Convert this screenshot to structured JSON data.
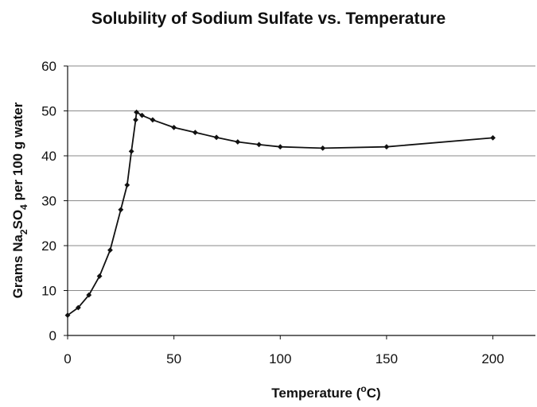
{
  "chart_data": {
    "type": "line",
    "title": "Solubility of Sodium Sulfate vs. Temperature",
    "xlabel": {
      "main": "Temperature (",
      "sup": "o",
      "unit": "C)"
    },
    "ylabel": {
      "p1": "Grams Na",
      "sub1": "2",
      "p2": "SO",
      "sub2": "4",
      "p3": " per 100 g water"
    },
    "xlim": [
      0,
      220
    ],
    "ylim": [
      0,
      60
    ],
    "xticks": [
      "0",
      "50",
      "100",
      "150",
      "200"
    ],
    "yticks": [
      "0",
      "10",
      "20",
      "30",
      "40",
      "50",
      "60"
    ],
    "grid": "horizontal",
    "series": [
      {
        "x": [
          0,
          5,
          10,
          15,
          20,
          25,
          28,
          30,
          32,
          32.4,
          35,
          40,
          50,
          60,
          70,
          80,
          90,
          100,
          120,
          150,
          200
        ],
        "y": [
          4.5,
          6.2,
          9.0,
          13.2,
          19.0,
          28.0,
          33.5,
          41.0,
          48.0,
          49.7,
          49.0,
          48.0,
          46.3,
          45.2,
          44.1,
          43.1,
          42.5,
          42.0,
          41.7,
          42.0,
          44.0
        ]
      }
    ],
    "colors": {
      "line": "#111111",
      "marker": "#111111",
      "grid": "#8a8a8a"
    }
  }
}
